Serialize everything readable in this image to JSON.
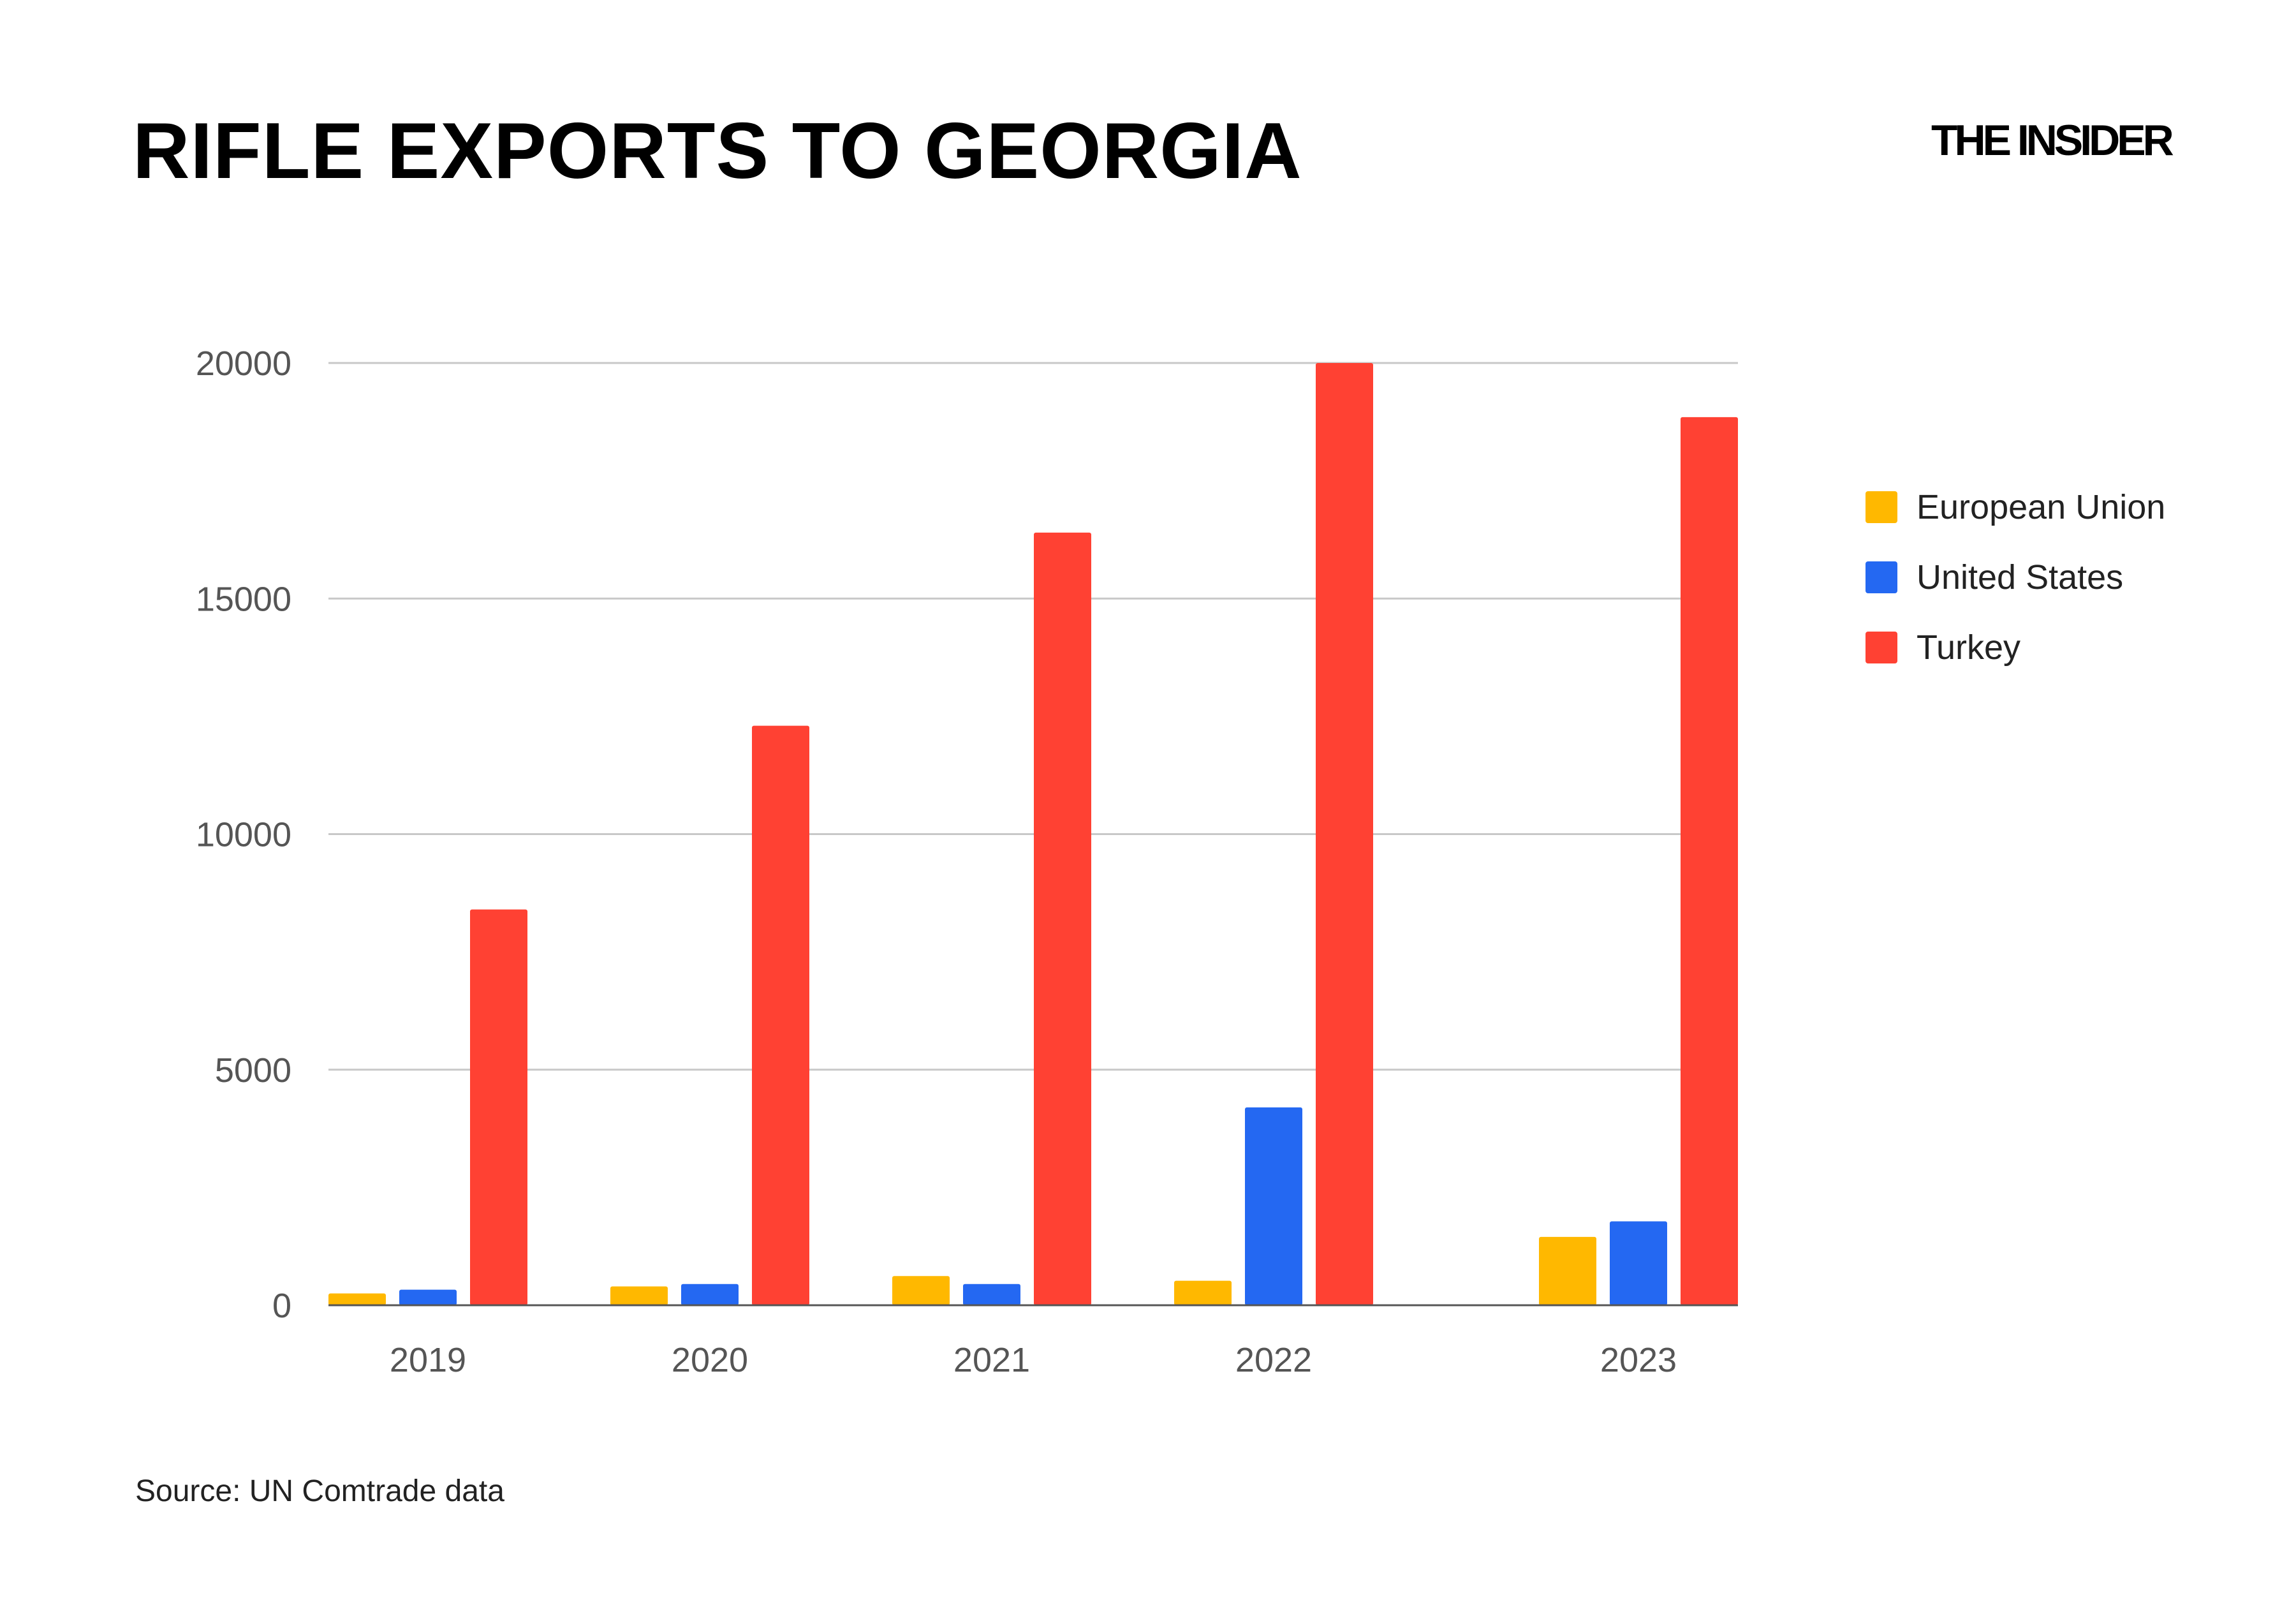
{
  "header": {
    "title": "RIFLE EXPORTS TO GEORGIA",
    "brand": "THE INSIDER"
  },
  "footer": {
    "source": "Source: UN Comtrade data"
  },
  "chart_data": {
    "type": "bar",
    "title": "RIFLE EXPORTS TO GEORGIA",
    "xlabel": "",
    "ylabel": "",
    "categories": [
      "2019",
      "2020",
      "2021",
      "2022",
      "2023"
    ],
    "series": [
      {
        "name": "European Union",
        "color": "#FFB800",
        "values": [
          250,
          400,
          620,
          520,
          1450
        ]
      },
      {
        "name": "United States",
        "color": "#2468F2",
        "values": [
          330,
          450,
          450,
          4200,
          1780
        ]
      },
      {
        "name": "Turkey",
        "color": "#FF4133",
        "values": [
          8400,
          12300,
          16400,
          20000,
          18850
        ]
      }
    ],
    "ylim": [
      0,
      20000
    ],
    "yticks": [
      "0",
      "5000",
      "10000",
      "15000",
      "20000"
    ],
    "grid": true,
    "legend_position": "right"
  }
}
